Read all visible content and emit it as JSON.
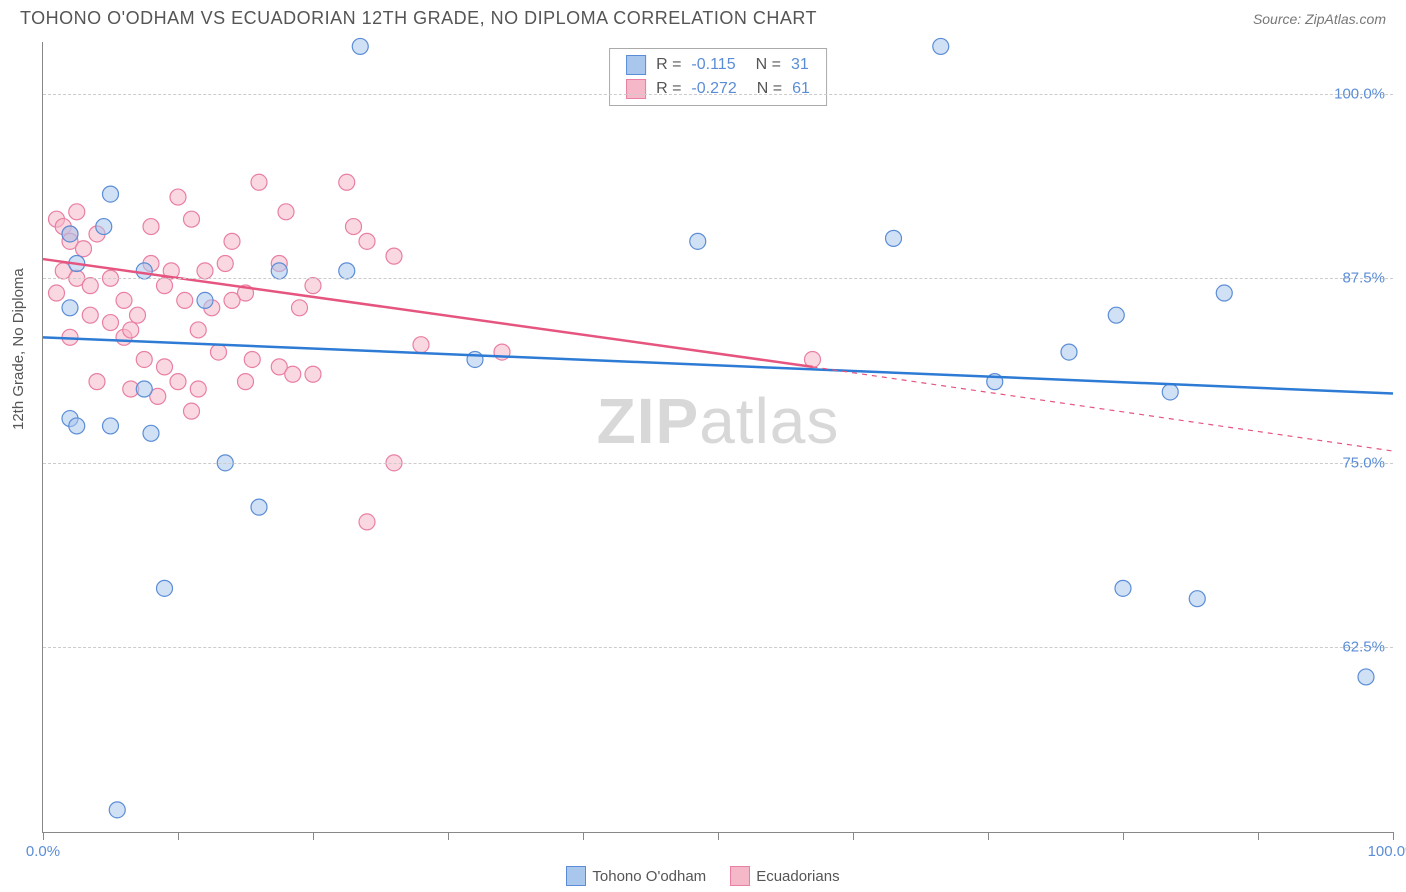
{
  "header": {
    "title": "TOHONO O'ODHAM VS ECUADORIAN 12TH GRADE, NO DIPLOMA CORRELATION CHART",
    "source": "Source: ZipAtlas.com"
  },
  "chart": {
    "type": "scatter",
    "ylabel": "12th Grade, No Diploma",
    "xlim": [
      0,
      100
    ],
    "ylim": [
      50,
      103.5
    ],
    "yticks": [
      62.5,
      75.0,
      87.5,
      100.0
    ],
    "ytick_labels": [
      "62.5%",
      "75.0%",
      "87.5%",
      "100.0%"
    ],
    "xticks": [
      0,
      10,
      20,
      30,
      40,
      50,
      60,
      70,
      80,
      90,
      100
    ],
    "xtick_labels_shown": {
      "0": "0.0%",
      "100": "100.0%"
    },
    "background_color": "#ffffff",
    "grid_color": "#cccccc",
    "axis_color": "#888888",
    "marker_radius": 8,
    "marker_opacity": 0.55,
    "series": [
      {
        "name": "Tohono O'odham",
        "color_fill": "#a9c6ec",
        "color_stroke": "#5b8dd6",
        "line_color": "#2d7bd4",
        "line_width": 2.5,
        "R": "-0.115",
        "N": "31",
        "trend": {
          "x1": 0,
          "y1": 83.5,
          "x2": 100,
          "y2": 79.7
        },
        "trend_dash": null,
        "points": [
          [
            23.5,
            103.2
          ],
          [
            66.5,
            103.2
          ],
          [
            5.0,
            93.2
          ],
          [
            4.5,
            91.0
          ],
          [
            2.0,
            90.5
          ],
          [
            7.5,
            88.0
          ],
          [
            17.5,
            88.0
          ],
          [
            22.5,
            88.0
          ],
          [
            63.0,
            90.2
          ],
          [
            2.0,
            85.5
          ],
          [
            87.5,
            86.5
          ],
          [
            2.0,
            78.0
          ],
          [
            2.5,
            77.5
          ],
          [
            5.0,
            77.5
          ],
          [
            8.0,
            77.0
          ],
          [
            13.5,
            75.0
          ],
          [
            32.0,
            82.0
          ],
          [
            76.0,
            82.5
          ],
          [
            70.5,
            80.5
          ],
          [
            83.5,
            79.8
          ],
          [
            16.0,
            72.0
          ],
          [
            9.0,
            66.5
          ],
          [
            80.0,
            66.5
          ],
          [
            85.5,
            65.8
          ],
          [
            98.0,
            60.5
          ],
          [
            5.5,
            51.5
          ],
          [
            48.5,
            90.0
          ],
          [
            2.5,
            88.5
          ],
          [
            12.0,
            86.0
          ],
          [
            7.5,
            80.0
          ],
          [
            79.5,
            85.0
          ]
        ]
      },
      {
        "name": "Ecuadorians",
        "color_fill": "#f5b8c9",
        "color_stroke": "#e97fa3",
        "line_color": "#e5557f",
        "line_width": 2.5,
        "R": "-0.272",
        "N": "61",
        "trend": {
          "x1": 0,
          "y1": 88.8,
          "x2": 57,
          "y2": 81.5
        },
        "trend_dash": {
          "x1": 57,
          "y1": 81.5,
          "x2": 100,
          "y2": 75.8
        },
        "points": [
          [
            1.0,
            91.5
          ],
          [
            1.5,
            91.0
          ],
          [
            2.0,
            90.5
          ],
          [
            2.0,
            90.0
          ],
          [
            3.0,
            89.5
          ],
          [
            1.5,
            88.0
          ],
          [
            2.5,
            87.5
          ],
          [
            3.5,
            87.0
          ],
          [
            4.0,
            90.5
          ],
          [
            5.0,
            87.5
          ],
          [
            6.0,
            86.0
          ],
          [
            7.0,
            85.0
          ],
          [
            8.0,
            88.5
          ],
          [
            9.0,
            87.0
          ],
          [
            10.0,
            93.0
          ],
          [
            11.0,
            91.5
          ],
          [
            12.0,
            88.0
          ],
          [
            10.5,
            86.0
          ],
          [
            11.5,
            84.0
          ],
          [
            12.5,
            85.5
          ],
          [
            14.0,
            90.0
          ],
          [
            15.0,
            86.5
          ],
          [
            16.0,
            94.0
          ],
          [
            18.0,
            92.0
          ],
          [
            17.5,
            88.5
          ],
          [
            20.0,
            87.0
          ],
          [
            23.0,
            91.0
          ],
          [
            24.0,
            90.0
          ],
          [
            26.0,
            89.0
          ],
          [
            28.0,
            83.0
          ],
          [
            6.0,
            83.5
          ],
          [
            7.5,
            82.0
          ],
          [
            9.0,
            81.5
          ],
          [
            10.0,
            80.5
          ],
          [
            6.5,
            80.0
          ],
          [
            8.5,
            79.5
          ],
          [
            11.5,
            80.0
          ],
          [
            13.0,
            82.5
          ],
          [
            15.5,
            82.0
          ],
          [
            17.5,
            81.5
          ],
          [
            20.0,
            81.0
          ],
          [
            9.5,
            88.0
          ],
          [
            3.5,
            85.0
          ],
          [
            5.0,
            84.5
          ],
          [
            6.5,
            84.0
          ],
          [
            2.0,
            83.5
          ],
          [
            34.0,
            82.5
          ],
          [
            57.0,
            82.0
          ],
          [
            26.0,
            75.0
          ],
          [
            24.0,
            71.0
          ],
          [
            4.0,
            80.5
          ],
          [
            14.0,
            86.0
          ],
          [
            22.5,
            94.0
          ],
          [
            19.0,
            85.5
          ],
          [
            13.5,
            88.5
          ],
          [
            8.0,
            91.0
          ],
          [
            2.5,
            92.0
          ],
          [
            1.0,
            86.5
          ],
          [
            15.0,
            80.5
          ],
          [
            18.5,
            81.0
          ],
          [
            11.0,
            78.5
          ]
        ]
      }
    ]
  },
  "bottom_legend": [
    {
      "label": "Tohono O'odham",
      "fill": "#a9c6ec",
      "stroke": "#5b8dd6"
    },
    {
      "label": "Ecuadorians",
      "fill": "#f5b8c9",
      "stroke": "#e97fa3"
    }
  ],
  "watermark": {
    "bold": "ZIP",
    "rest": "atlas"
  }
}
